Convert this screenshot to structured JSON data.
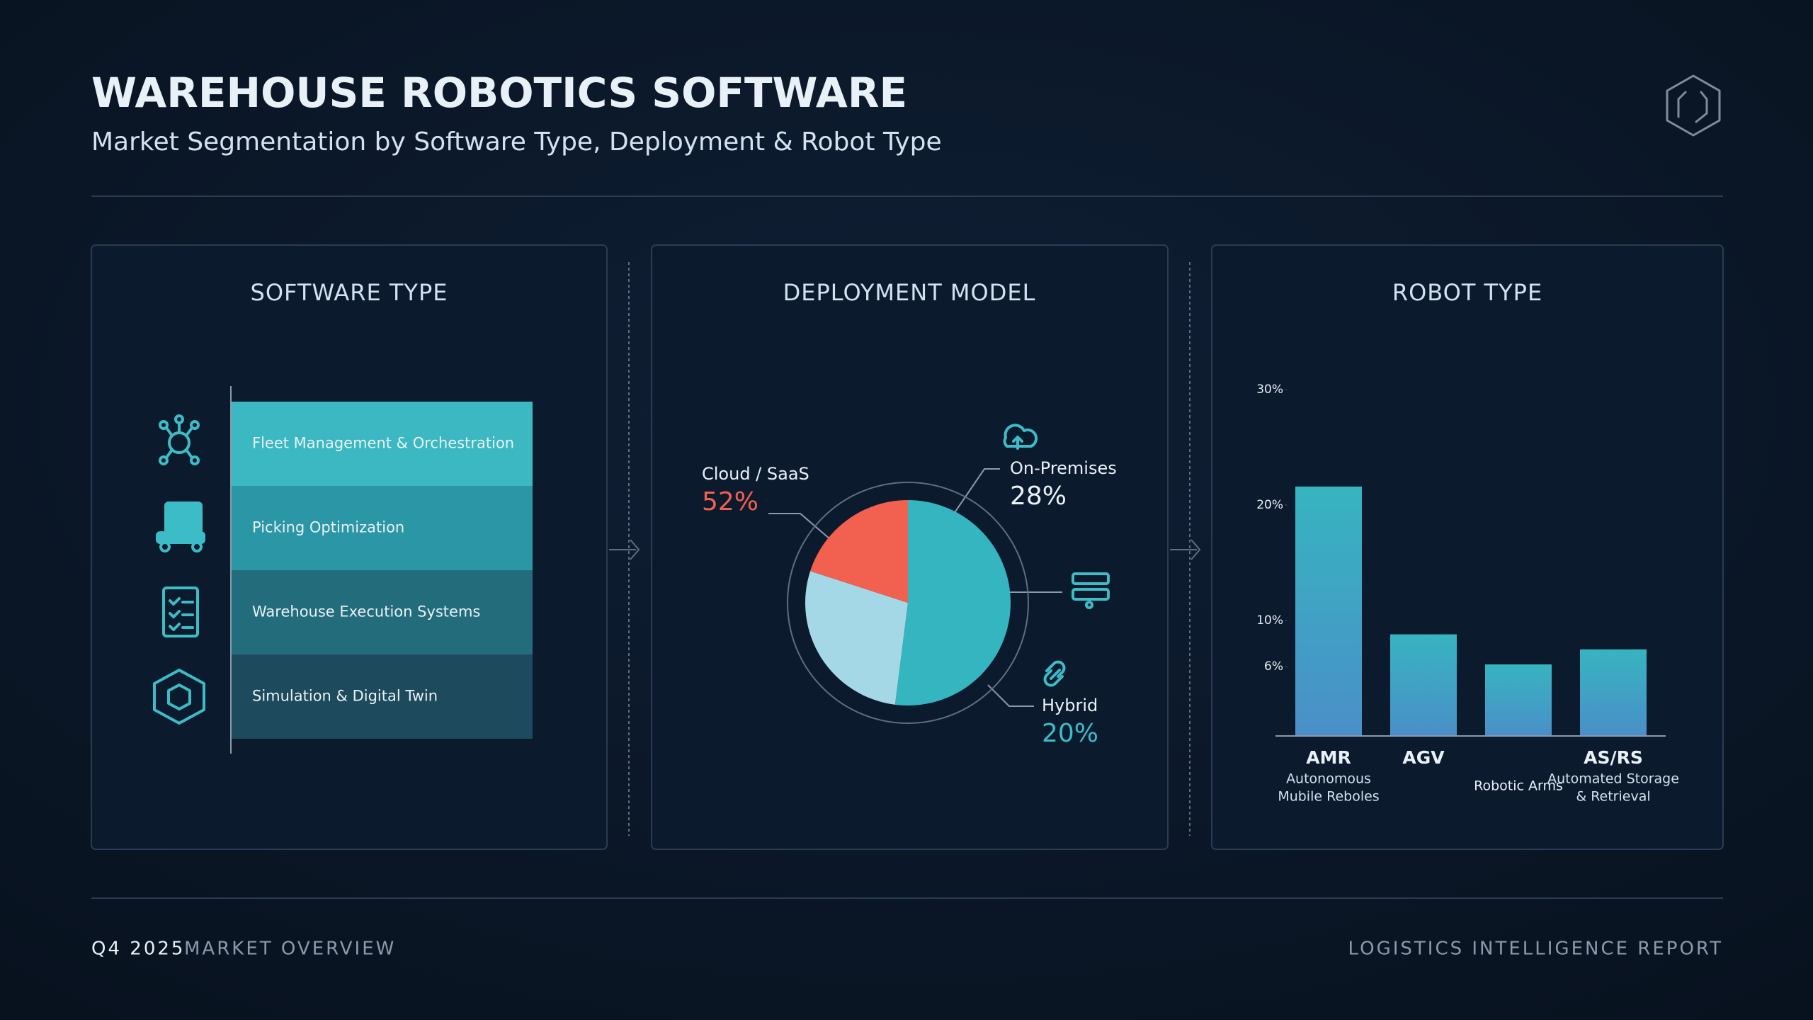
{
  "header": {
    "title": "WAREHOUSE ROBOTICS SOFTWARE",
    "subtitle": "Market Segmentation by Software Type, Deployment & Robot Type"
  },
  "chart_data": [
    {
      "type": "list",
      "title": "SOFTWARE TYPE",
      "categories": [
        "Fleet Management & Orchestration",
        "Picking Optimization",
        "Warehouse Execution Systems",
        "Simulation & Digital Twin"
      ],
      "colors": [
        "#3bb8c1",
        "#2a96a6",
        "#236c7c",
        "#1d4a5c"
      ]
    },
    {
      "type": "pie",
      "title": "DEPLOYMENT MODEL",
      "categories": [
        "Cloud / SaaS",
        "On-Premises",
        "Hybrid"
      ],
      "values": [
        52,
        28,
        20
      ],
      "value_labels": [
        "52%",
        "28%",
        "20%"
      ],
      "colors": [
        "#35b5bf",
        "#a5d8e6",
        "#f2604f"
      ],
      "label_colors": [
        "#f2604f",
        "#e8f1f7",
        "#3bbcc6"
      ]
    },
    {
      "type": "bar",
      "title": "ROBOT TYPE",
      "categories": [
        "AMR",
        "AGV",
        "Robotic Arms",
        "AS/RS"
      ],
      "descriptions": [
        [
          "Autonomous",
          "Mubile Reboles"
        ],
        null,
        null,
        [
          "Automated Storage",
          "& Retrieval"
        ]
      ],
      "values": [
        21.6,
        8.8,
        6.2,
        7.5
      ],
      "color": "#37b4c0",
      "ylim": [
        0,
        30
      ],
      "yticks": [
        {
          "value": 30,
          "label": "30%"
        },
        {
          "value": 20,
          "label": "20%"
        },
        {
          "value": 10,
          "label": "10%"
        },
        {
          "value": 6,
          "label": "6%"
        }
      ]
    }
  ],
  "footer": {
    "period": "Q4 2025",
    "left": "MARKET OVERVIEW",
    "right": "LOGISTICS INTELLIGENCE REPORT"
  }
}
